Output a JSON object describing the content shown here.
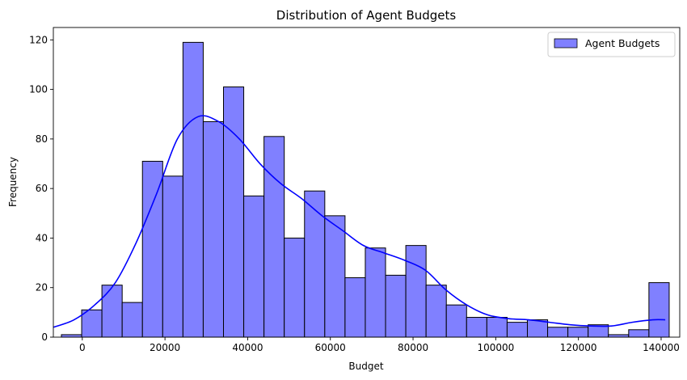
{
  "chart_data": {
    "type": "bar",
    "title": "Distribution of Agent Budgets",
    "xlabel": "Budget",
    "ylabel": "Frequency",
    "xlim": [
      -7000,
      144500
    ],
    "ylim": [
      0,
      125
    ],
    "xticks": [
      0,
      20000,
      40000,
      60000,
      80000,
      100000,
      120000,
      140000
    ],
    "xtick_labels": [
      "0",
      "20000",
      "40000",
      "60000",
      "80000",
      "100000",
      "120000",
      "140000"
    ],
    "yticks": [
      0,
      20,
      40,
      60,
      80,
      100,
      120
    ],
    "ytick_labels": [
      "0",
      "20",
      "40",
      "60",
      "80",
      "100",
      "120"
    ],
    "grid": false,
    "legend": {
      "position": "top-right",
      "entries": [
        "Agent Budgets"
      ]
    },
    "colors": {
      "bar_fill": "#8080ff",
      "bar_edge": "#000000",
      "kde": "#0000ff"
    },
    "bins": {
      "start": -5050,
      "width": 4900,
      "counts": [
        1,
        11,
        21,
        14,
        71,
        65,
        119,
        87,
        101,
        57,
        81,
        40,
        59,
        49,
        24,
        36,
        25,
        37,
        21,
        13,
        8,
        8,
        6,
        7,
        4,
        4,
        5,
        1,
        3,
        22
      ]
    },
    "series": [
      {
        "name": "Agent Budgets",
        "kind": "kde",
        "x": [
          -7000,
          -2000,
          3000,
          8000,
          13000,
          18000,
          23000,
          28000,
          33000,
          38000,
          43000,
          48000,
          53000,
          58000,
          63000,
          68000,
          73000,
          78000,
          83000,
          88000,
          93000,
          98000,
          103000,
          108000,
          113000,
          118000,
          123000,
          128000,
          133000,
          138000,
          141000
        ],
        "y": [
          4,
          7,
          13,
          22,
          38,
          58,
          80,
          89,
          87,
          80,
          70,
          62,
          56,
          49,
          43,
          37,
          34,
          31,
          27,
          19,
          13,
          9,
          7.5,
          7,
          6,
          5,
          4.5,
          4.5,
          6,
          7,
          7
        ]
      }
    ]
  }
}
